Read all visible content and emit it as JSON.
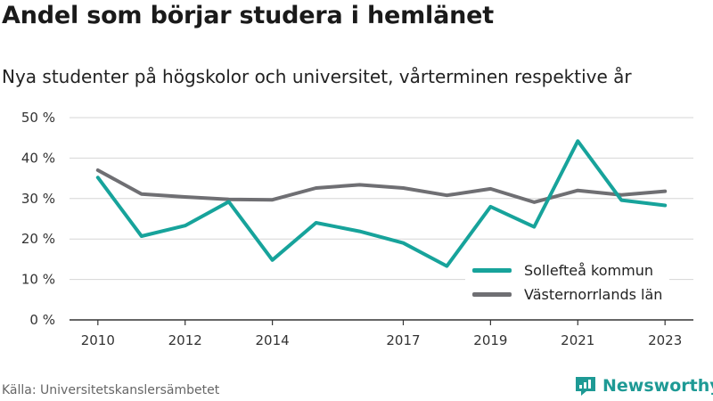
{
  "title": "Andel som börjar studera i hemlänet",
  "subtitle": "Nya studenter på högskolor och universitet, vårterminen respektive år",
  "source": "Källa: Universitetskanslersämbetet",
  "brand": "Newsworthy",
  "colors": {
    "series1": "#17a39b",
    "series2": "#6f6f73",
    "grid": "#d6d6d6",
    "axis": "#333333",
    "brand": "#1e9a95"
  },
  "chart_data": {
    "type": "line",
    "x": [
      2010,
      2011,
      2012,
      2013,
      2014,
      2015,
      2016,
      2017,
      2018,
      2019,
      2020,
      2021,
      2022,
      2023
    ],
    "series": [
      {
        "name": "Sollefteå kommun",
        "values": [
          35.2,
          20.7,
          23.3,
          29.2,
          14.8,
          24.0,
          21.9,
          19.0,
          13.3,
          28.0,
          23.0,
          44.2,
          29.6,
          28.3
        ]
      },
      {
        "name": "Västernorrlands län",
        "values": [
          37.0,
          31.1,
          30.4,
          29.8,
          29.7,
          32.6,
          33.4,
          32.6,
          30.8,
          32.4,
          29.1,
          32.0,
          30.9,
          31.8
        ]
      }
    ],
    "xticks": [
      2010,
      2012,
      2014,
      2017,
      2019,
      2021,
      2023
    ],
    "yticks": [
      0,
      10,
      20,
      30,
      40,
      50
    ],
    "ytick_labels": [
      "0 %",
      "10 %",
      "20 %",
      "30 %",
      "40 %",
      "50 %"
    ],
    "ylim": [
      0,
      50
    ],
    "xlim": [
      2009.35,
      2023.65
    ],
    "grid": true,
    "legend": "bottom-right"
  }
}
